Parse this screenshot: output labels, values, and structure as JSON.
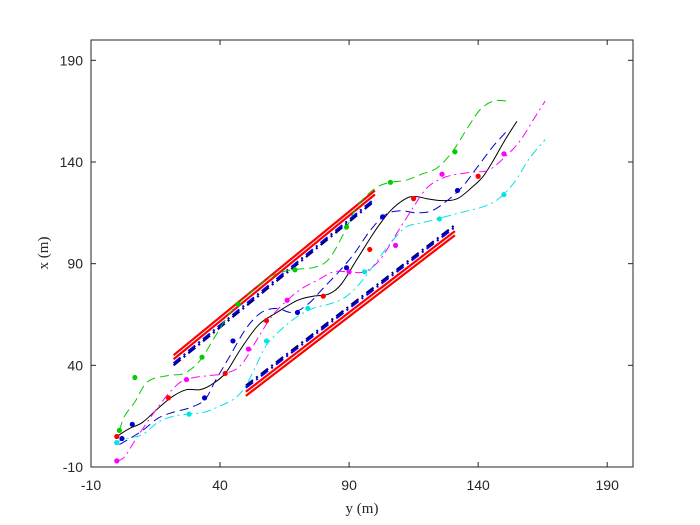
{
  "chart_data": {
    "type": "line",
    "xlabel": "y (m)",
    "ylabel": "x (m)",
    "xlim": [
      -10,
      200
    ],
    "ylim": [
      -10,
      200
    ],
    "xticks": [
      -10,
      40,
      90,
      140,
      190
    ],
    "yticks": [
      -10,
      40,
      90,
      140,
      190
    ],
    "grid": false,
    "legend": "none",
    "boundaries": [
      {
        "name": "",
        "color": "#ff0000",
        "style": "solid",
        "points": [
          [
            22,
            45
          ],
          [
            100,
            126
          ]
        ]
      },
      {
        "name": "",
        "color": "#ff0000",
        "style": "solid",
        "points": [
          [
            22,
            43
          ],
          [
            100,
            124
          ]
        ]
      },
      {
        "name": "",
        "color": "#0000ff",
        "style": "dashdot",
        "points": [
          [
            22,
            41
          ],
          [
            100,
            122
          ]
        ]
      },
      {
        "name": "",
        "color": "#000080",
        "style": "dashdot",
        "points": [
          [
            22,
            40
          ],
          [
            100,
            121
          ]
        ]
      },
      {
        "name": "",
        "color": "#ff0000",
        "style": "solid",
        "points": [
          [
            50,
            25
          ],
          [
            131,
            104
          ]
        ]
      },
      {
        "name": "",
        "color": "#ff0000",
        "style": "solid",
        "points": [
          [
            50,
            27
          ],
          [
            131,
            106
          ]
        ]
      },
      {
        "name": "",
        "color": "#0000ff",
        "style": "dashdot",
        "points": [
          [
            50,
            29
          ],
          [
            131,
            108
          ]
        ]
      },
      {
        "name": "",
        "color": "#000080",
        "style": "dashdot",
        "points": [
          [
            50,
            30
          ],
          [
            131,
            109
          ]
        ]
      }
    ],
    "series": [
      {
        "name": "",
        "color": "#000000",
        "style": "solid",
        "x": [
          0,
          5,
          10,
          17,
          22,
          27,
          32,
          36,
          42,
          48,
          55,
          62,
          70,
          76,
          82,
          87,
          93,
          100,
          106,
          112,
          116,
          120,
          126,
          132,
          138,
          142,
          146,
          150,
          155
        ],
        "y": [
          5,
          9,
          12,
          20,
          25,
          28,
          28,
          30,
          36,
          48,
          60,
          66,
          72,
          74,
          75,
          80,
          92,
          106,
          116,
          122,
          123,
          122,
          121,
          122,
          128,
          133,
          141,
          150,
          160
        ],
        "markers": [
          [
            0,
            5
          ],
          [
            20,
            24
          ],
          [
            42,
            36
          ],
          [
            58,
            62
          ],
          [
            80,
            74
          ],
          [
            98,
            97
          ],
          [
            115,
            122
          ],
          [
            140,
            133
          ]
        ]
      },
      {
        "name": "",
        "color": "#00cc00",
        "style": "dash",
        "x": [
          1,
          3,
          7,
          12,
          20,
          26,
          32,
          38,
          44,
          52,
          60,
          68,
          76,
          82,
          88,
          93,
          100,
          106,
          112,
          118,
          124,
          130,
          136,
          141,
          146,
          151
        ],
        "y": [
          8,
          15,
          22,
          32,
          35,
          36,
          42,
          54,
          66,
          76,
          84,
          87,
          88,
          92,
          105,
          118,
          127,
          130,
          131,
          134,
          137,
          145,
          157,
          166,
          170,
          170
        ],
        "markers": [
          [
            1,
            8
          ],
          [
            7,
            34
          ],
          [
            33,
            44
          ],
          [
            47,
            70
          ],
          [
            69,
            87
          ],
          [
            89,
            108
          ],
          [
            106,
            130
          ],
          [
            131,
            145
          ]
        ]
      },
      {
        "name": "",
        "color": "#0000cc",
        "style": "dash",
        "x": [
          1,
          5,
          10,
          16,
          22,
          28,
          34,
          38,
          44,
          50,
          56,
          62,
          68,
          74,
          80,
          86,
          92,
          98,
          104,
          110,
          116,
          122,
          128,
          134,
          140,
          146,
          151
        ],
        "y": [
          1,
          4,
          8,
          14,
          17,
          19,
          23,
          32,
          45,
          58,
          66,
          68,
          66,
          70,
          78,
          86,
          95,
          106,
          114,
          116,
          115,
          116,
          121,
          128,
          138,
          148,
          155
        ],
        "markers": [
          [
            2,
            4
          ],
          [
            6,
            11
          ],
          [
            34,
            24
          ],
          [
            45,
            52
          ],
          [
            70,
            66
          ],
          [
            89,
            88
          ],
          [
            103,
            113
          ],
          [
            132,
            126
          ]
        ]
      },
      {
        "name": "",
        "color": "#ff00ff",
        "style": "dashdot",
        "x": [
          0,
          3,
          8,
          14,
          20,
          25,
          30,
          36,
          42,
          48,
          54,
          60,
          66,
          72,
          78,
          84,
          90,
          96,
          102,
          108,
          114,
          120,
          126,
          132,
          138,
          144,
          150,
          156,
          162,
          166
        ],
        "y": [
          -7,
          -5,
          5,
          16,
          26,
          32,
          34,
          35,
          36,
          40,
          52,
          64,
          72,
          78,
          82,
          86,
          86,
          86,
          92,
          104,
          116,
          127,
          132,
          134,
          135,
          136,
          142,
          150,
          162,
          170
        ],
        "markers": [
          [
            0,
            -7
          ],
          [
            27,
            33
          ],
          [
            51,
            48
          ],
          [
            66,
            72
          ],
          [
            90,
            86
          ],
          [
            108,
            99
          ],
          [
            126,
            134
          ],
          [
            150,
            144
          ]
        ]
      },
      {
        "name": "",
        "color": "#00e5e5",
        "style": "dashdot",
        "x": [
          -1,
          4,
          10,
          16,
          22,
          28,
          34,
          40,
          46,
          50,
          54,
          58,
          64,
          70,
          76,
          82,
          88,
          94,
          100,
          106,
          112,
          118,
          124,
          130,
          136,
          142,
          148,
          154,
          160,
          166
        ],
        "y": [
          2,
          4,
          6,
          12,
          15,
          16,
          17,
          20,
          24,
          30,
          40,
          50,
          58,
          64,
          68,
          70,
          73,
          80,
          90,
          100,
          108,
          110,
          112,
          114,
          116,
          118,
          122,
          130,
          142,
          151
        ],
        "markers": [
          [
            0,
            2
          ],
          [
            28,
            16
          ],
          [
            58,
            52
          ],
          [
            74,
            68
          ],
          [
            96,
            86
          ],
          [
            125,
            112
          ],
          [
            150,
            124
          ]
        ]
      }
    ]
  }
}
